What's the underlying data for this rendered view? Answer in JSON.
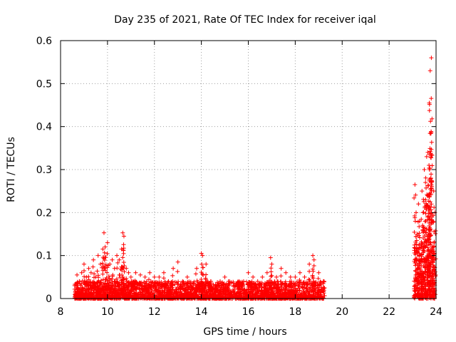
{
  "chart_data": {
    "type": "scatter",
    "title": "Day 235 of 2021, Rate Of TEC Index for receiver iqal",
    "xlabel": "GPS time / hours",
    "ylabel": "ROTI / TECUs",
    "xlim": [
      8,
      24
    ],
    "ylim": [
      0,
      0.6
    ],
    "x_ticks": [
      "8",
      "10",
      "12",
      "14",
      "16",
      "18",
      "20",
      "22",
      "24"
    ],
    "y_ticks": [
      "0",
      "0.1",
      "0.2",
      "0.3",
      "0.4",
      "0.5",
      "0.6"
    ],
    "grid": true,
    "marker": "+",
    "color": "#ff0000",
    "series": [
      {
        "x": [
          8.6,
          8.7,
          8.8,
          8.9,
          9.0,
          9.1,
          9.2,
          9.3,
          9.4,
          9.5,
          9.6,
          9.7,
          9.8,
          9.85,
          9.9,
          10.0,
          10.1,
          10.2,
          10.3,
          10.4,
          10.5,
          10.6,
          10.65,
          10.7,
          10.8,
          10.9,
          11.0,
          11.2,
          11.4,
          11.6,
          11.8,
          12.0,
          12.2,
          12.4,
          12.6,
          12.8,
          13.0,
          13.2,
          13.4,
          13.6,
          13.8,
          14.0,
          14.05,
          14.2,
          14.4,
          14.6,
          14.8,
          15.0,
          15.2,
          15.4,
          15.6,
          15.8,
          16.0,
          16.2,
          16.4,
          16.6,
          16.8,
          16.95,
          17.0,
          17.2,
          17.4,
          17.6,
          17.8,
          18.0,
          18.2,
          18.4,
          18.6,
          18.75,
          18.8,
          19.0,
          19.2,
          23.1,
          23.15,
          23.2,
          23.25,
          23.3,
          23.35,
          23.4,
          23.45,
          23.5,
          23.55,
          23.6,
          23.65,
          23.7,
          23.72,
          23.75,
          23.8,
          23.85,
          23.9,
          23.95
        ],
        "y": [
          0.03,
          0.055,
          0.04,
          0.06,
          0.08,
          0.05,
          0.07,
          0.06,
          0.09,
          0.05,
          0.1,
          0.08,
          0.115,
          0.153,
          0.12,
          0.13,
          0.08,
          0.09,
          0.07,
          0.1,
          0.09,
          0.115,
          0.153,
          0.145,
          0.07,
          0.06,
          0.05,
          0.06,
          0.055,
          0.05,
          0.06,
          0.05,
          0.05,
          0.06,
          0.04,
          0.07,
          0.085,
          0.04,
          0.05,
          0.03,
          0.07,
          0.105,
          0.1,
          0.08,
          0.04,
          0.03,
          0.04,
          0.05,
          0.04,
          0.03,
          0.04,
          0.04,
          0.06,
          0.05,
          0.04,
          0.05,
          0.06,
          0.095,
          0.08,
          0.05,
          0.07,
          0.06,
          0.05,
          0.05,
          0.06,
          0.05,
          0.08,
          0.1,
          0.09,
          0.06,
          0.04,
          0.265,
          0.2,
          0.15,
          0.22,
          0.18,
          0.12,
          0.25,
          0.2,
          0.3,
          0.27,
          0.33,
          0.34,
          0.31,
          0.3,
          0.53,
          0.56,
          0.18,
          0.25,
          0.2
        ],
        "dense_bands": [
          {
            "x_range": [
              8.6,
              19.25
            ],
            "y_range": [
              0.0,
              0.04
            ]
          },
          {
            "x_range": [
              23.05,
              23.95
            ],
            "y_range": [
              0.0,
              0.12
            ]
          }
        ]
      }
    ]
  }
}
